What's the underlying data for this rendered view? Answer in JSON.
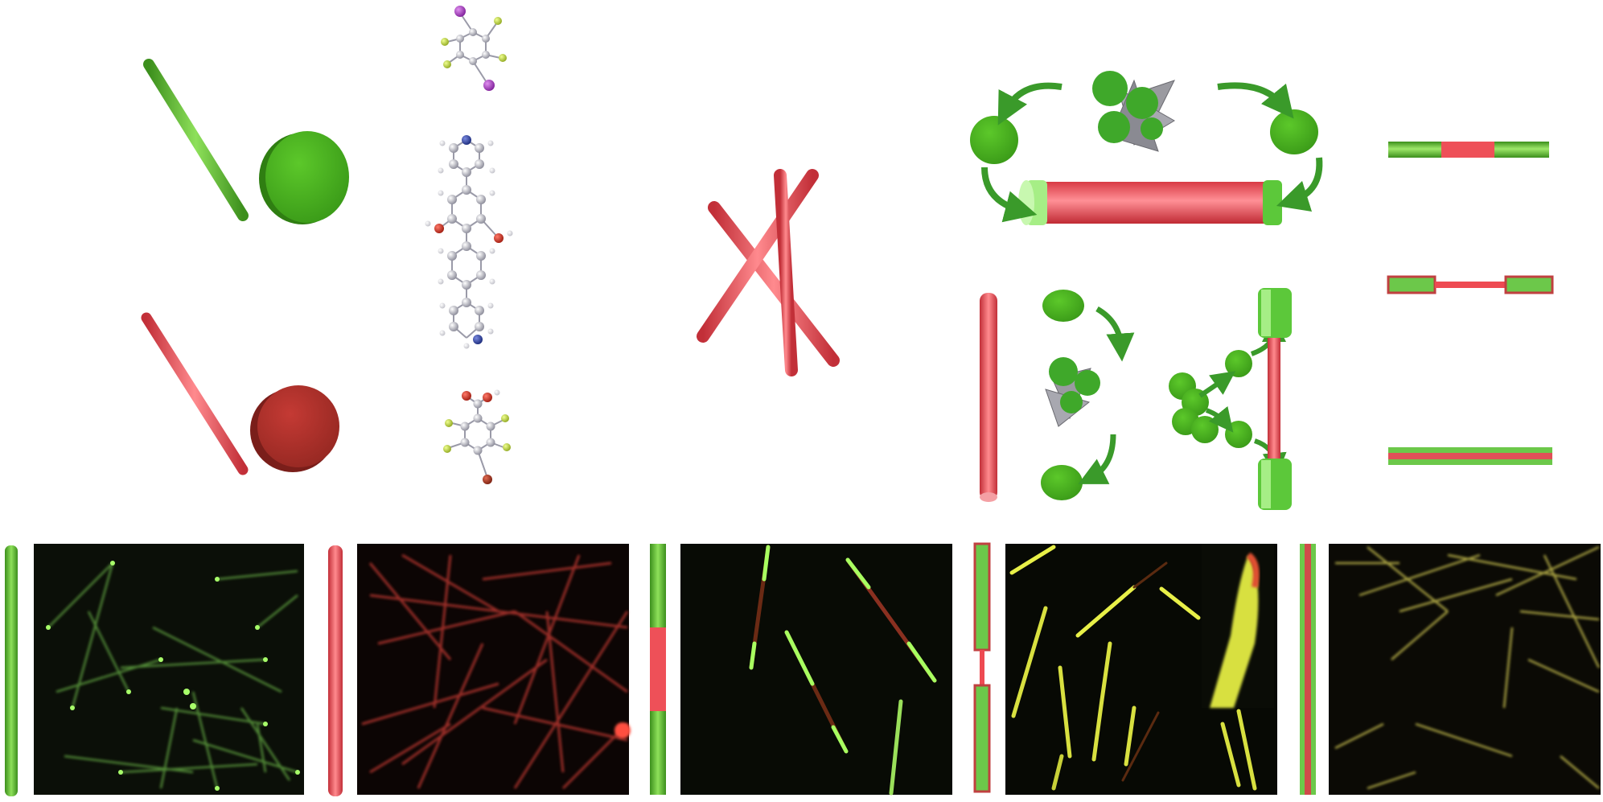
{
  "figure": {
    "domain": "schematic-and-micrographs",
    "panels": [
      {
        "id": "green-rod-disk",
        "rod_color": "#5cbf2a",
        "disk_color": "#44a81e"
      },
      {
        "id": "red-rod-disk",
        "rod_color": "#e8444c",
        "disk_color": "#b0302c"
      },
      {
        "id": "molecule-top",
        "atoms": [
          "iodine",
          "fluorine",
          "carbon"
        ]
      },
      {
        "id": "molecule-middle",
        "atoms": [
          "nitrogen",
          "carbon",
          "oxygen",
          "hydrogen"
        ]
      },
      {
        "id": "molecule-bottom",
        "atoms": [
          "oxygen",
          "hydrogen",
          "fluorine",
          "bromine",
          "carbon"
        ]
      },
      {
        "id": "crossed-red-rods",
        "color": "#e8444c"
      },
      {
        "id": "end-growth-cycle",
        "description_icons": [
          "green-disk",
          "curved-arrow",
          "red-rod",
          "green-cap"
        ]
      },
      {
        "id": "side-growth",
        "description_icons": [
          "green-disk",
          "curved-arrow",
          "red-rod",
          "green-cluster"
        ]
      },
      {
        "id": "heterostructure-legend",
        "styles": [
          "triblock",
          "dumbbell",
          "core-shell"
        ]
      }
    ],
    "micrographs": [
      {
        "id": "micro-green",
        "tint": "#7fe04a",
        "background": "#0b0f08",
        "legend_bar": "green"
      },
      {
        "id": "micro-red",
        "tint": "#e04040",
        "background": "#0c0504",
        "legend_bar": "red"
      },
      {
        "id": "micro-triblock",
        "tint": "#8fe850",
        "background": "#080b05",
        "legend_bar": "triblock"
      },
      {
        "id": "micro-dumbbell",
        "tint": "#e6e84a",
        "background": "#070904",
        "legend_bar": "dumbbell"
      },
      {
        "id": "micro-coreshell",
        "tint": "#d8d060",
        "background": "#0b0a05",
        "legend_bar": "core-shell"
      }
    ],
    "colors": {
      "green": "#5cbf2a",
      "green_dark": "#3b8f1a",
      "red": "#e8444c",
      "red_dark": "#b0303a",
      "gray_flower": "#9a9aa0",
      "atom_carbon": "#b8b8c4",
      "atom_nitrogen": "#2a3a9a",
      "atom_oxygen": "#c0281c",
      "atom_iodine": "#a040b0",
      "atom_fluorine": "#b8d040",
      "atom_bromine": "#a03018"
    }
  }
}
